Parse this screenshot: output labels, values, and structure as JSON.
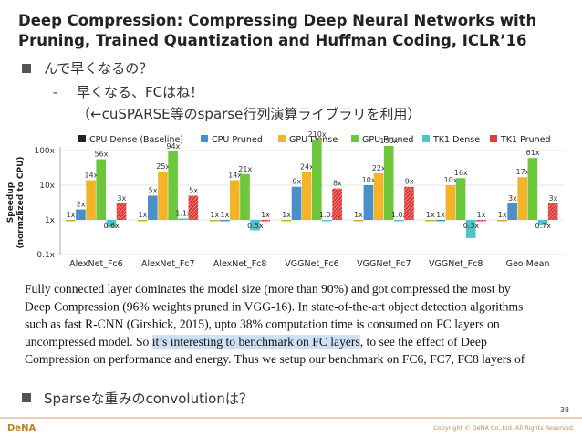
{
  "title": [
    "Deep Compression: Compressing Deep Neural Networks with",
    "Pruning, Trained Quantization and Huffman Coding, ICLR’16"
  ],
  "bullet1": "んで早くなるの？",
  "sub1": "早くなる、FCはね！",
  "sub2": "（←cuSPARSE等のsparse行列演算ライブラリを利用）",
  "chart_data": {
    "type": "bar",
    "ylabel": [
      "Speedup",
      "(normzlized to CPU)"
    ],
    "categories": [
      "AlexNet_Fc6",
      "AlexNet_Fc7",
      "AlexNet_Fc8",
      "VGGNet_Fc6",
      "VGGNet_Fc7",
      "VGGNet_Fc8",
      "Geo Mean"
    ],
    "log_scale": true,
    "ylim": [
      0.1,
      100
    ],
    "yticks": [
      {
        "value": 0.1,
        "label": "0.1x"
      },
      {
        "value": 1,
        "label": "1x"
      },
      {
        "value": 10,
        "label": "10x"
      },
      {
        "value": 100,
        "label": "100x"
      }
    ],
    "grid": true,
    "legend": "top",
    "series": [
      {
        "name": "CPU Dense (Baseline)",
        "color": "#c9b12a",
        "legend_color": "#222222",
        "values": [
          1,
          1,
          1,
          1,
          1,
          1,
          1
        ],
        "value_labels": [
          "1x",
          "1x",
          "1x",
          "1x",
          "1x",
          "1x",
          "1x"
        ]
      },
      {
        "name": "CPU Pruned",
        "color": "#4a8fc7",
        "values": [
          2,
          5,
          1,
          9,
          10,
          1,
          3
        ],
        "value_labels": [
          "2x",
          "5x",
          "1x",
          "9x",
          "10x",
          "1x",
          "3x"
        ]
      },
      {
        "name": "GPU Dense",
        "color": "#f2b529",
        "values": [
          14,
          25,
          14,
          24,
          22,
          10,
          17
        ],
        "value_labels": [
          "14x",
          "25x",
          "14x",
          "24x",
          "22x",
          "10x",
          "17x"
        ]
      },
      {
        "name": "GPU Pruned",
        "color": "#6cc73a",
        "values": [
          56,
          94,
          21,
          210,
          135,
          16,
          61
        ],
        "value_labels": [
          "56x",
          "94x",
          "21x",
          "210x",
          "135x",
          "16x",
          "61x"
        ]
      },
      {
        "name": "TK1 Dense",
        "color": "#4fc4c4",
        "values": [
          0.6,
          1.1,
          0.5,
          1.0,
          1.0,
          0.3,
          0.7
        ],
        "value_labels": [
          "0.6x",
          "1.1x",
          "0.5x",
          "1.0x",
          "1.0x",
          "0.3x",
          "0.7x"
        ]
      },
      {
        "name": "TK1 Pruned",
        "color": "#e23a3a",
        "values": [
          3,
          5,
          1,
          8,
          9,
          1,
          3
        ],
        "value_labels": [
          "3x",
          "5x",
          "1x",
          "8x",
          "9x",
          "1x",
          "3x"
        ]
      }
    ]
  },
  "excerpt": {
    "before": [
      "Fully connected layer dominates the model size (more than 90%) and got compressed the most by",
      "Deep Compression (96% weights pruned in VGG-16). In state-of-the-art object detection algorithms",
      "such as fast R-CNN (Girshick, 2015), upto 38% computation time is consumed on FC layers on"
    ],
    "line_start": "uncompressed model.  So ",
    "highlight": "it’s interesting to benchmark on FC layers",
    "line_end": ", to see the effect of Deep",
    "after": [
      "Compression on performance and energy. Thus we setup our benchmark on FC6, FC7, FC8 layers of"
    ]
  },
  "bullet2": "Sparseな重みのconvolutionは？",
  "page_number": "38",
  "logo": "DeNA",
  "copyright": "Copyright © DeNA Co.,Ltd. All Rights Reserved."
}
